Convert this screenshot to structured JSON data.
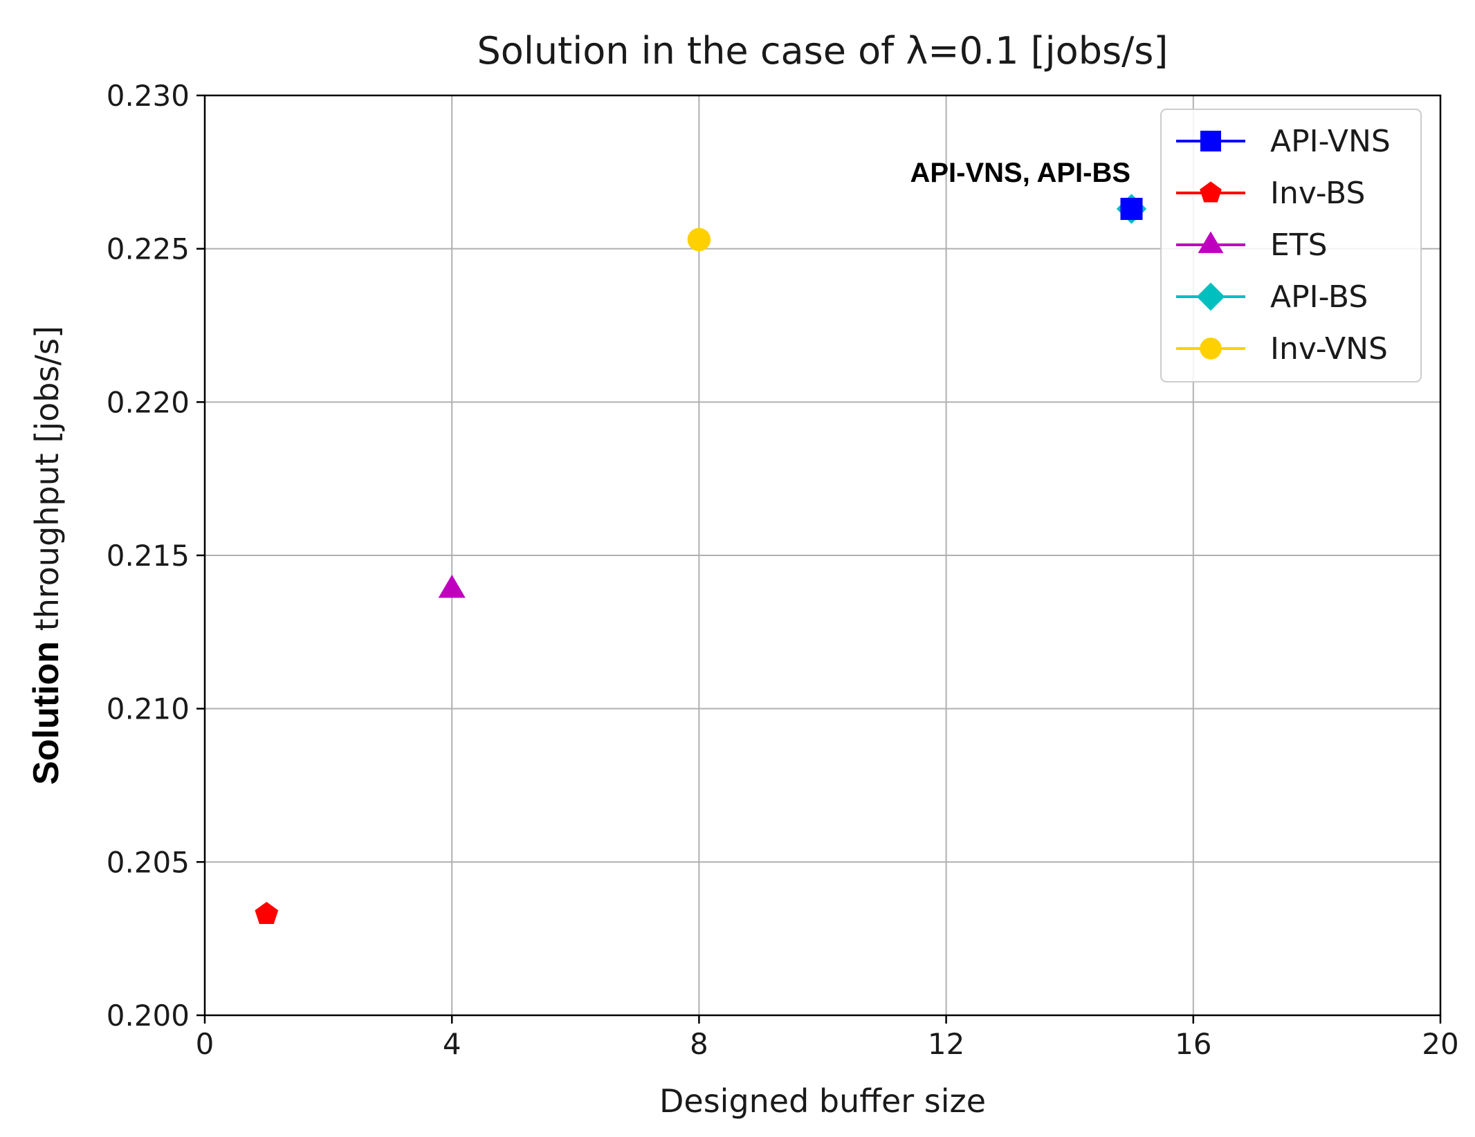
{
  "chart_data": {
    "type": "scatter",
    "title": "Solution in the case of λ=0.1 [jobs/s]",
    "xlabel": "Designed buffer size",
    "ylabel_bold": "Solution",
    "ylabel_rest": " throughput [jobs/s]",
    "xlim": [
      0,
      20
    ],
    "ylim": [
      0.2,
      0.23
    ],
    "xticks": [
      0,
      4,
      8,
      12,
      16,
      20
    ],
    "xtick_labels": [
      "0",
      "4",
      "8",
      "12",
      "16",
      "20"
    ],
    "yticks": [
      0.2,
      0.205,
      0.21,
      0.215,
      0.22,
      0.225,
      0.23
    ],
    "ytick_labels": [
      "0.200",
      "0.205",
      "0.210",
      "0.215",
      "0.220",
      "0.225",
      "0.230"
    ],
    "grid": true,
    "legend_position": "top-right",
    "series": [
      {
        "name": "API-VNS",
        "marker": "square",
        "color": "#0000ff",
        "x": [
          15
        ],
        "y": [
          0.2263
        ]
      },
      {
        "name": "Inv-BS",
        "marker": "pentagon",
        "color": "#ff0000",
        "x": [
          1
        ],
        "y": [
          0.2033
        ]
      },
      {
        "name": "ETS",
        "marker": "triangle",
        "color": "#bf00bf",
        "x": [
          4
        ],
        "y": [
          0.2139
        ]
      },
      {
        "name": "API-BS",
        "marker": "diamond",
        "color": "#00bfbf",
        "x": [
          15
        ],
        "y": [
          0.2263
        ]
      },
      {
        "name": "Inv-VNS",
        "marker": "circle",
        "color": "#ffd000",
        "x": [
          8
        ],
        "y": [
          0.2253
        ]
      }
    ],
    "annotations": [
      {
        "text": "API-VNS, API-BS",
        "x": 13.2,
        "y": 0.2275
      }
    ]
  }
}
